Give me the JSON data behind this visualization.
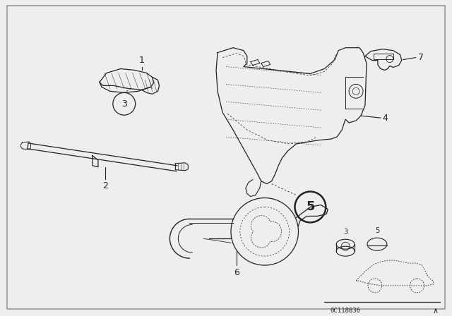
{
  "bg_color": "#eeeeee",
  "border_color": "#999999",
  "line_color": "#222222",
  "diagram_code": "0C118836",
  "fig_width": 6.4,
  "fig_height": 4.48,
  "dpi": 100
}
